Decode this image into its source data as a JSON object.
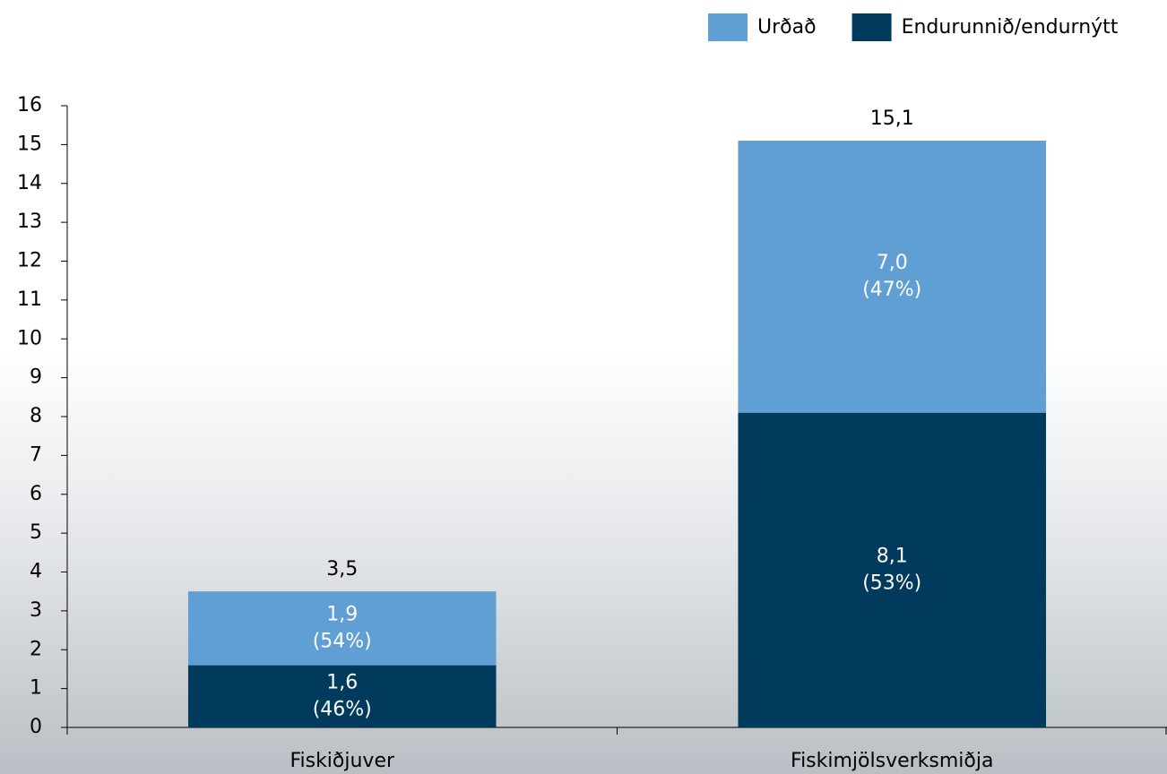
{
  "chart_data": {
    "type": "stacked_bar",
    "categories": [
      "Fiskiðjuver",
      "Fiskimjölsverksmiðja"
    ],
    "series": [
      {
        "name": "Urðað",
        "color": "#5f9fd3",
        "values": [
          1.9,
          7.0
        ],
        "value_labels": [
          "1,9",
          "7,0"
        ],
        "percent_labels": [
          "(54%)",
          "(47%)"
        ]
      },
      {
        "name": "Endurunnið/endurnýtt",
        "color": "#003a5c",
        "values": [
          1.6,
          8.1
        ],
        "value_labels": [
          "1,6",
          "8,1"
        ],
        "percent_labels": [
          "(46%)",
          "(53%)"
        ]
      }
    ],
    "totals": [
      3.5,
      15.1
    ],
    "total_labels": [
      "3,5",
      "15,1"
    ],
    "ylim": [
      0,
      16
    ],
    "yticks": [
      0,
      1,
      2,
      3,
      4,
      5,
      6,
      7,
      8,
      9,
      10,
      11,
      12,
      13,
      14,
      15,
      16
    ],
    "legend": "top-right"
  }
}
